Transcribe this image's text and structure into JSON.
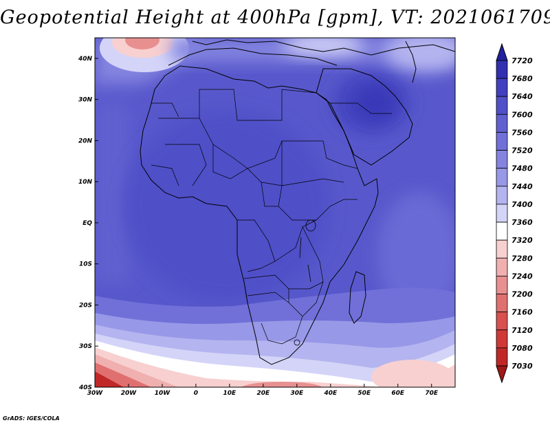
{
  "title": "Geopotential Height at 400hPa [gpm], VT: 2021061709",
  "credit": "GrADS: IGES/COLA",
  "map": {
    "lon_range": [
      -30,
      77
    ],
    "lat_range": [
      -40,
      45
    ],
    "x_ticks": [
      {
        "lon": -30,
        "label": "30W"
      },
      {
        "lon": -20,
        "label": "20W"
      },
      {
        "lon": -10,
        "label": "10W"
      },
      {
        "lon": 0,
        "label": "0"
      },
      {
        "lon": 10,
        "label": "10E"
      },
      {
        "lon": 20,
        "label": "20E"
      },
      {
        "lon": 30,
        "label": "30E"
      },
      {
        "lon": 40,
        "label": "40E"
      },
      {
        "lon": 50,
        "label": "50E"
      },
      {
        "lon": 60,
        "label": "60E"
      },
      {
        "lon": 70,
        "label": "70E"
      }
    ],
    "y_ticks": [
      {
        "lat": 40,
        "label": "40N"
      },
      {
        "lat": 30,
        "label": "30N"
      },
      {
        "lat": 20,
        "label": "20N"
      },
      {
        "lat": 10,
        "label": "10N"
      },
      {
        "lat": 0,
        "label": "EQ"
      },
      {
        "lat": -10,
        "label": "10S"
      },
      {
        "lat": -20,
        "label": "20S"
      },
      {
        "lat": -30,
        "label": "30S"
      },
      {
        "lat": -40,
        "label": "40S"
      }
    ]
  },
  "colorbar": {
    "labels": [
      "7720",
      "7680",
      "7640",
      "7600",
      "7560",
      "7520",
      "7480",
      "7440",
      "7400",
      "7360",
      "7320",
      "7280",
      "7240",
      "7200",
      "7160",
      "7120",
      "7080",
      "7030"
    ],
    "colors": [
      "#2020a0",
      "#3030b0",
      "#4040c0",
      "#5050c8",
      "#6060d0",
      "#7070d8",
      "#8484e0",
      "#9898e8",
      "#b4b4f0",
      "#d4d4f8",
      "#ffffff",
      "#f8d0d0",
      "#f0b0b0",
      "#e89090",
      "#e07070",
      "#d85050",
      "#d03838",
      "#c02828",
      "#a01818"
    ]
  },
  "chart_data": {
    "type": "heatmap",
    "title": "Geopotential Height at 400hPa [gpm], VT: 2021061709",
    "variable": "Geopotential Height at 400hPa",
    "units": "gpm",
    "valid_time": "2021061709",
    "x_range": [
      -30,
      77
    ],
    "y_range": [
      -40,
      45
    ],
    "contour_levels": [
      7030,
      7080,
      7120,
      7160,
      7200,
      7240,
      7280,
      7320,
      7360,
      7400,
      7440,
      7480,
      7520,
      7560,
      7600,
      7640,
      7680,
      7720
    ],
    "features": [
      {
        "lon": 52,
        "lat": 29,
        "value_approx": 7640
      },
      {
        "lon": 15,
        "lat": 10,
        "value_approx": 7560
      },
      {
        "lon": -15,
        "lat": 43,
        "value_approx": 7280
      },
      {
        "lon": -27,
        "lat": -38,
        "value_approx": 7120
      },
      {
        "lon": 20,
        "lat": -38,
        "value_approx": 7240
      }
    ]
  }
}
